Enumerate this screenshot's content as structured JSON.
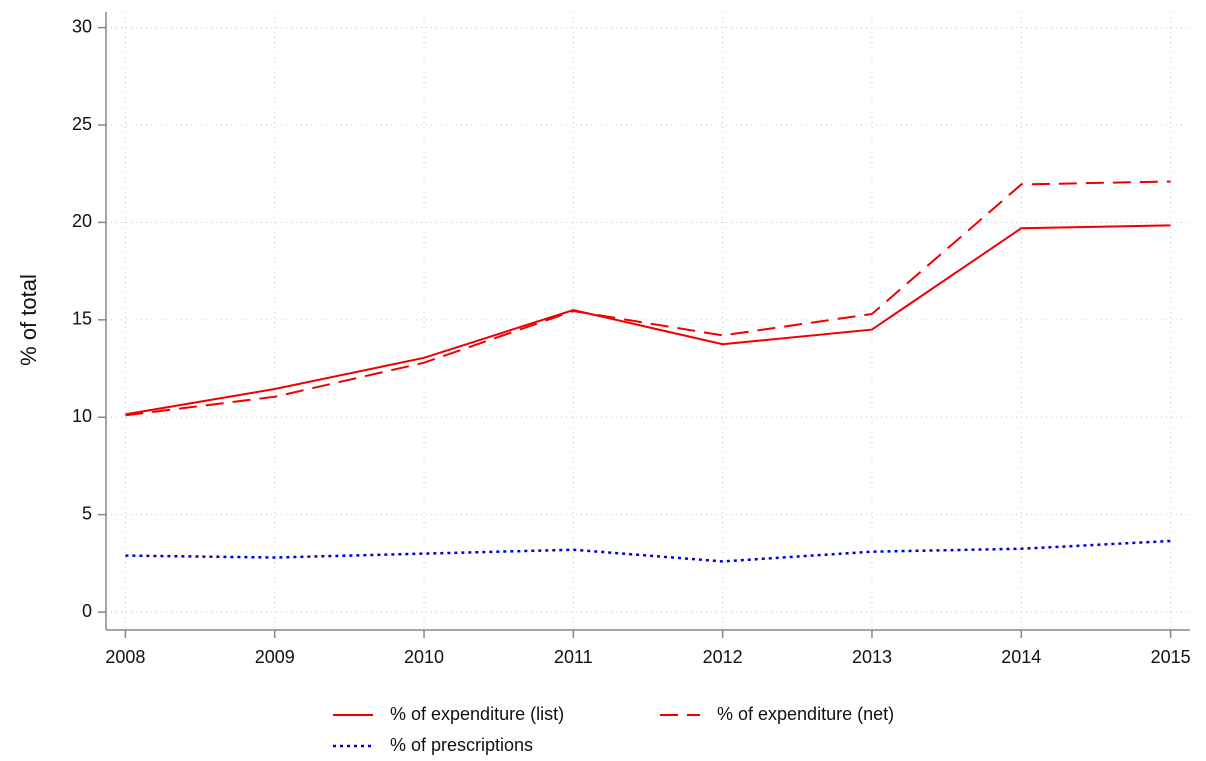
{
  "chart_data": {
    "type": "line",
    "y_label": "% of total",
    "x": [
      2008,
      2009,
      2010,
      2011,
      2012,
      2013,
      2014,
      2015
    ],
    "series": [
      {
        "name": "% of expenditure (list)",
        "color": "#ee0000",
        "style": "solid",
        "values": [
          10.15,
          11.45,
          13.05,
          15.5,
          13.75,
          14.5,
          19.7,
          19.85
        ]
      },
      {
        "name": "% of expenditure (net)",
        "color": "#ee0000",
        "style": "dashed",
        "values": [
          10.1,
          11.05,
          12.8,
          15.45,
          14.2,
          15.3,
          21.95,
          22.1
        ]
      },
      {
        "name": "% of prescriptions",
        "color": "#0000dd",
        "style": "dotted",
        "values": [
          2.9,
          2.8,
          3.0,
          3.2,
          2.6,
          3.1,
          3.25,
          3.65
        ]
      }
    ],
    "xlim": [
      2007.87,
      2015.13
    ],
    "xticks": [
      2008,
      2009,
      2010,
      2011,
      2012,
      2013,
      2014,
      2015
    ],
    "ylim": [
      -0.92,
      30.8
    ],
    "yticks": [
      0,
      5,
      10,
      15,
      20,
      25,
      30
    ],
    "grid": true,
    "legend": "bottom"
  }
}
